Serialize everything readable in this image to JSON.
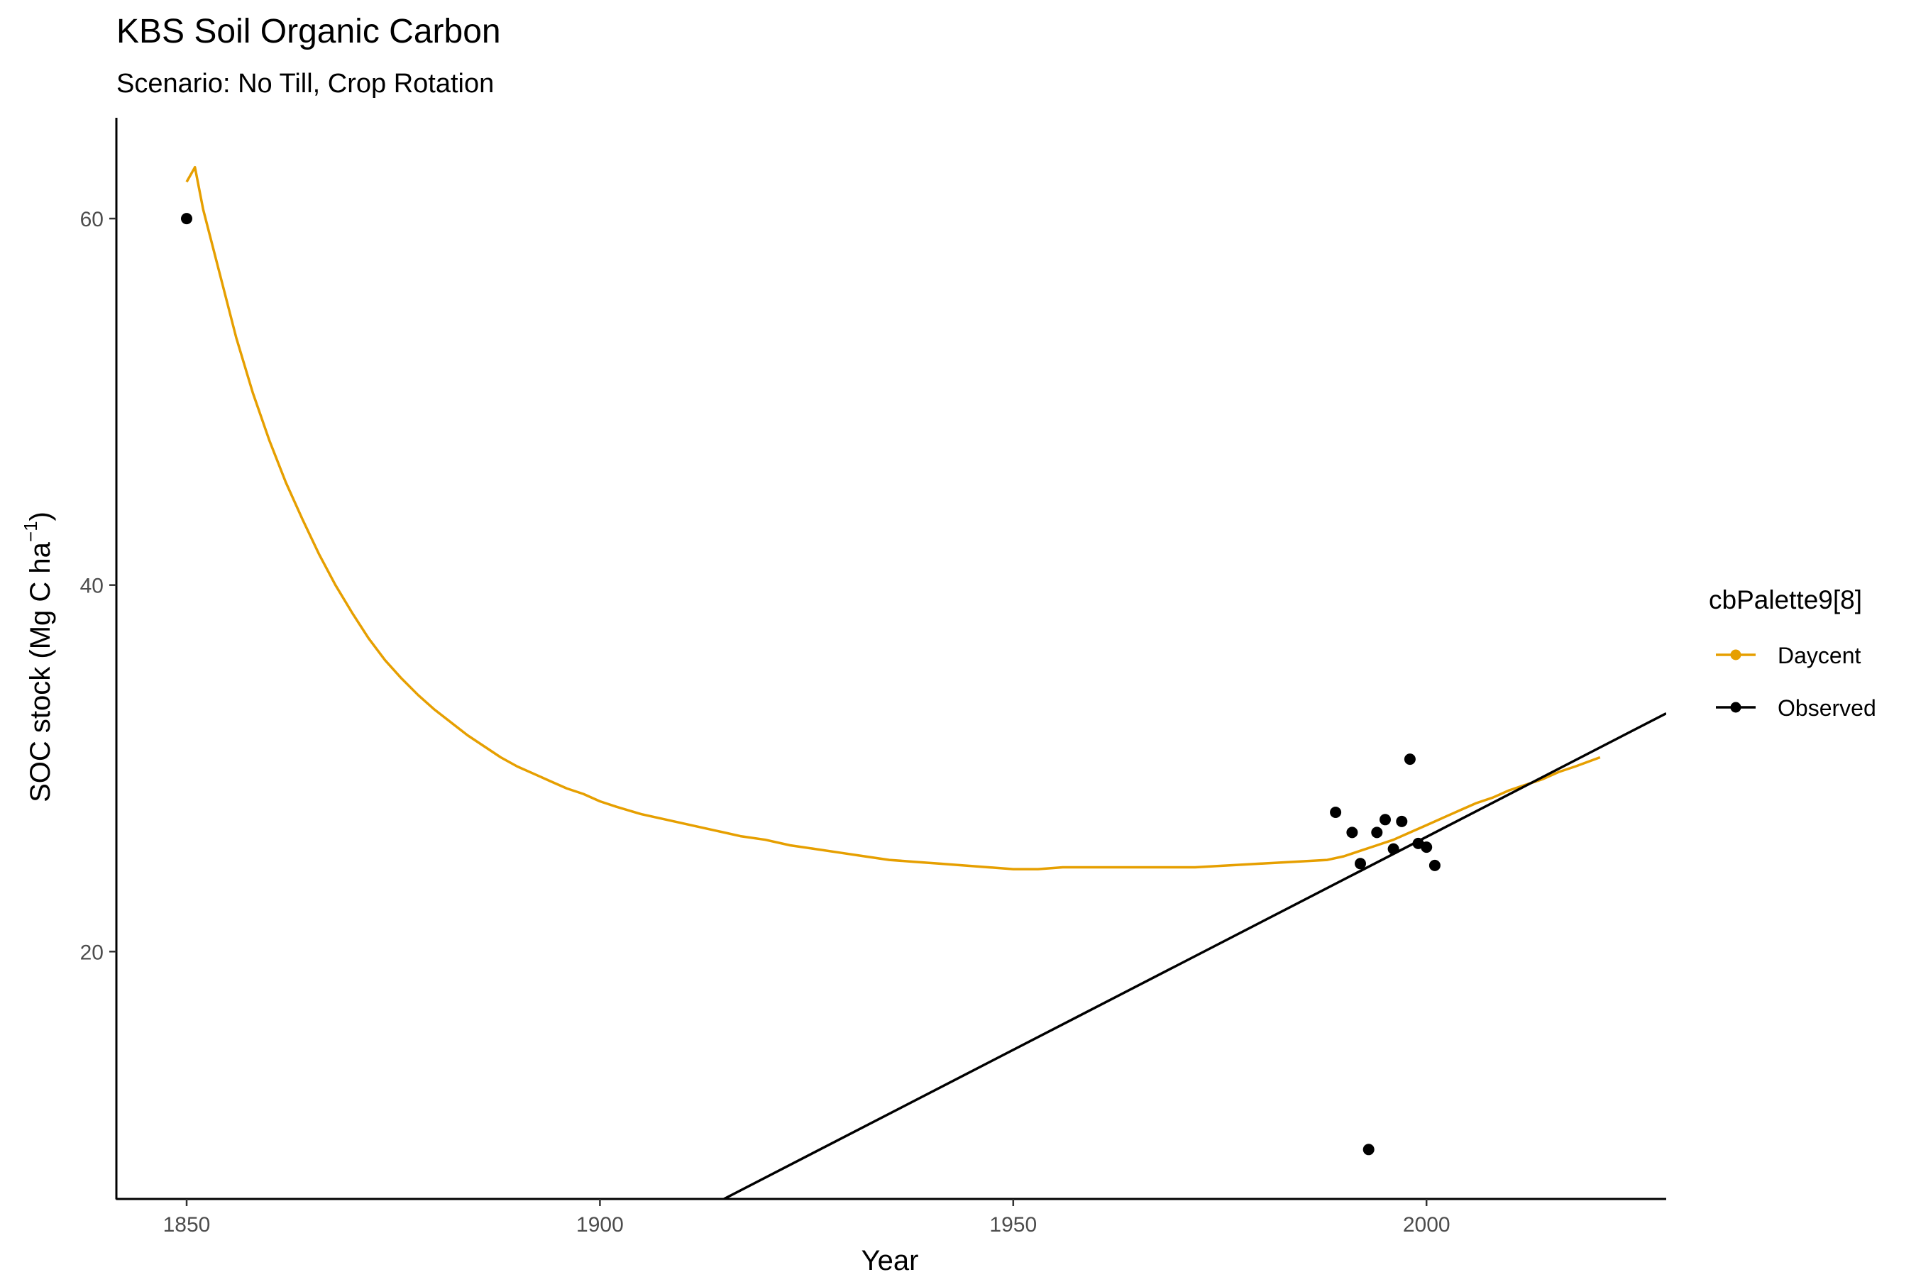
{
  "chart_data": {
    "type": "line",
    "title": "KBS Soil Organic Carbon",
    "subtitle": "Scenario: No Till, Crop Rotation",
    "xlabel": "Year",
    "ylabel": "SOC stock (Mg C ha",
    "ylabel_superscript": "−1",
    "ylabel_suffix": ")",
    "xlim": [
      1841.5,
      2029
    ],
    "ylim": [
      6.5,
      65.5
    ],
    "x_ticks": [
      1850,
      1900,
      1950,
      2000
    ],
    "y_ticks": [
      20,
      40,
      60
    ],
    "grid": false,
    "legend": {
      "title": "cbPalette9[8]",
      "position": "right",
      "entries": [
        {
          "label": "Daycent",
          "color": "#E69F00"
        },
        {
          "label": "Observed",
          "color": "#000000"
        }
      ]
    },
    "series": [
      {
        "name": "Daycent",
        "kind": "line",
        "color": "#E69F00",
        "x": [
          1850,
          1851,
          1852,
          1854,
          1856,
          1858,
          1860,
          1862,
          1864,
          1866,
          1868,
          1870,
          1872,
          1874,
          1876,
          1878,
          1880,
          1882,
          1884,
          1886,
          1888,
          1890,
          1892,
          1894,
          1896,
          1898,
          1900,
          1902,
          1905,
          1908,
          1911,
          1914,
          1917,
          1920,
          1923,
          1926,
          1929,
          1932,
          1935,
          1938,
          1941,
          1944,
          1947,
          1950,
          1953,
          1956,
          1960,
          1964,
          1968,
          1972,
          1976,
          1980,
          1984,
          1988,
          1990,
          1992,
          1994,
          1996,
          1998,
          2000,
          2002,
          2004,
          2006,
          2008,
          2010,
          2012,
          2014,
          2016,
          2018,
          2021
        ],
        "y": [
          62.0,
          62.8,
          60.5,
          57.0,
          53.5,
          50.5,
          47.9,
          45.6,
          43.6,
          41.7,
          40.0,
          38.5,
          37.1,
          35.9,
          34.9,
          34.0,
          33.2,
          32.5,
          31.8,
          31.2,
          30.6,
          30.1,
          29.7,
          29.3,
          28.9,
          28.6,
          28.2,
          27.9,
          27.5,
          27.2,
          26.9,
          26.6,
          26.3,
          26.1,
          25.8,
          25.6,
          25.4,
          25.2,
          25.0,
          24.9,
          24.8,
          24.7,
          24.6,
          24.5,
          24.5,
          24.6,
          24.6,
          24.6,
          24.6,
          24.6,
          24.7,
          24.8,
          24.9,
          25.0,
          25.2,
          25.5,
          25.8,
          26.1,
          26.5,
          26.9,
          27.3,
          27.7,
          28.1,
          28.4,
          28.8,
          29.1,
          29.4,
          29.8,
          30.1,
          30.6
        ]
      },
      {
        "name": "Observed",
        "kind": "points",
        "color": "#000000",
        "x": [
          1850,
          1989,
          1991,
          1992,
          1993,
          1994,
          1995,
          1996,
          1997,
          1998,
          1999,
          2000,
          2001
        ],
        "y": [
          60.0,
          27.6,
          26.5,
          24.8,
          9.2,
          26.5,
          27.2,
          25.6,
          27.1,
          30.5,
          25.9,
          25.7,
          24.7
        ]
      },
      {
        "name": "Observed",
        "kind": "trend",
        "color": "#000000",
        "x": [
          1915,
          2029
        ],
        "y": [
          6.5,
          33.0
        ]
      }
    ]
  }
}
